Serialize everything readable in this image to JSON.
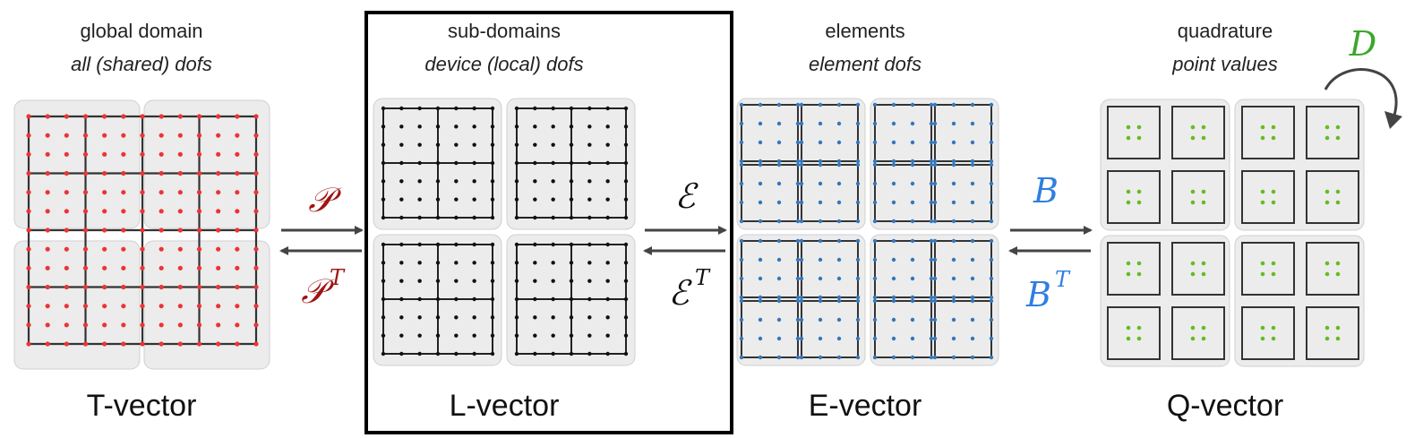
{
  "stages": [
    {
      "title": "global domain",
      "subtitle": "all (shared) dofs",
      "label": "T-vector"
    },
    {
      "title": "sub-domains",
      "subtitle": "device (local) dofs",
      "label": "L-vector"
    },
    {
      "title": "elements",
      "subtitle": "element dofs",
      "label": "E-vector"
    },
    {
      "title": "quadrature",
      "subtitle": "point values",
      "label": "Q-vector"
    }
  ],
  "operators": [
    {
      "forward": "𝒫",
      "transpose": "𝒫",
      "sup": "T",
      "color": "#a01414"
    },
    {
      "forward": "ℰ",
      "transpose": "ℰ",
      "sup": "T",
      "color": "#111111"
    },
    {
      "forward": "B",
      "transpose": "B",
      "sup": "T",
      "color": "#2f7fe0"
    }
  ],
  "self_operator": {
    "label": "D",
    "color": "#3aa82a"
  },
  "dot_colors": {
    "t": "#ee3333",
    "l": "#111111",
    "e": "#3377bb",
    "q": "#66bb22"
  },
  "highlighted_stage": "L-vector"
}
